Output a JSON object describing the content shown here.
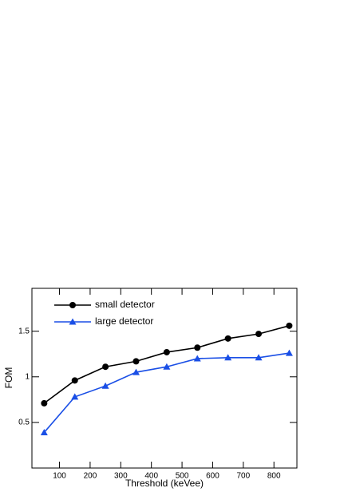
{
  "chart_data": {
    "type": "line",
    "xlabel": "Threshold (keVee)",
    "ylabel": "FOM",
    "x": [
      50,
      150,
      250,
      350,
      450,
      550,
      650,
      750,
      850
    ],
    "series": [
      {
        "name": "small detector",
        "color": "#000000",
        "marker": "circle",
        "values": [
          0.71,
          0.96,
          1.11,
          1.17,
          1.27,
          1.32,
          1.42,
          1.47,
          1.56
        ]
      },
      {
        "name": "large detector",
        "color": "#1a4fe6",
        "marker": "triangle",
        "values": [
          0.39,
          0.78,
          0.9,
          1.05,
          1.11,
          1.2,
          1.21,
          1.21,
          1.26
        ]
      }
    ],
    "xlim": [
      10,
      875
    ],
    "ylim": [
      0,
      1.97
    ],
    "xticks": [
      100,
      200,
      300,
      400,
      500,
      600,
      700,
      800
    ],
    "yticks": [
      0.5,
      1,
      1.5
    ],
    "legend": "upper left"
  }
}
